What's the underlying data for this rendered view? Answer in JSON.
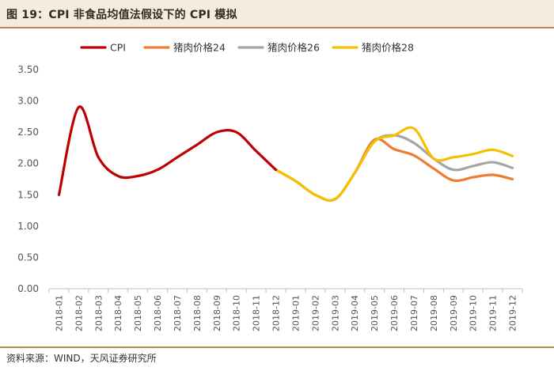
{
  "header": {
    "title": "图 19：CPI 非食品均值法假设下的 CPI 模拟"
  },
  "footer": {
    "source": "资料来源：WIND，天风证券研究所"
  },
  "colors": {
    "cpi": "#c00000",
    "pork24": "#ed7d31",
    "pork26": "#a5a5a5",
    "pork28": "#f5c000"
  },
  "chart_data": {
    "type": "line",
    "title": "图 19：CPI 非食品均值法假设下的 CPI 模拟",
    "xlabel": "",
    "ylabel": "",
    "ylim": [
      0,
      3.5
    ],
    "yticks": [
      "0.00",
      "0.50",
      "1.00",
      "1.50",
      "2.00",
      "2.50",
      "3.00",
      "3.50"
    ],
    "grid": false,
    "legend_position": "top",
    "x": [
      "2018-01",
      "2018-02",
      "2018-03",
      "2018-04",
      "2018-05",
      "2018-06",
      "2018-07",
      "2018-08",
      "2018-09",
      "2018-10",
      "2018-11",
      "2018-12",
      "2019-01",
      "2019-02",
      "2019-03",
      "2019-04",
      "2019-05",
      "2019-06",
      "2019-07",
      "2019-08",
      "2019-09",
      "2019-10",
      "2019-11",
      "2019-12"
    ],
    "series": [
      {
        "name": "CPI",
        "color_key": "cpi",
        "values": [
          1.5,
          2.9,
          2.1,
          1.8,
          1.8,
          1.9,
          2.1,
          2.3,
          2.5,
          2.5,
          2.2,
          1.9,
          null,
          null,
          null,
          null,
          null,
          null,
          null,
          null,
          null,
          null,
          null,
          null
        ]
      },
      {
        "name": "猪肉价格24",
        "color_key": "pork24",
        "values": [
          null,
          null,
          null,
          null,
          null,
          null,
          null,
          null,
          null,
          null,
          null,
          1.9,
          1.72,
          1.5,
          1.43,
          1.85,
          2.38,
          2.23,
          2.13,
          1.92,
          1.73,
          1.78,
          1.82,
          1.75
        ]
      },
      {
        "name": "猪肉价格26",
        "color_key": "pork26",
        "values": [
          null,
          null,
          null,
          null,
          null,
          null,
          null,
          null,
          null,
          null,
          null,
          1.9,
          1.72,
          1.5,
          1.43,
          1.85,
          2.35,
          2.45,
          2.33,
          2.08,
          1.9,
          1.96,
          2.02,
          1.93
        ]
      },
      {
        "name": "猪肉价格28",
        "color_key": "pork28",
        "values": [
          null,
          null,
          null,
          null,
          null,
          null,
          null,
          null,
          null,
          null,
          null,
          1.9,
          1.72,
          1.5,
          1.43,
          1.85,
          2.35,
          2.45,
          2.56,
          2.08,
          2.1,
          2.15,
          2.22,
          2.12
        ]
      }
    ]
  }
}
